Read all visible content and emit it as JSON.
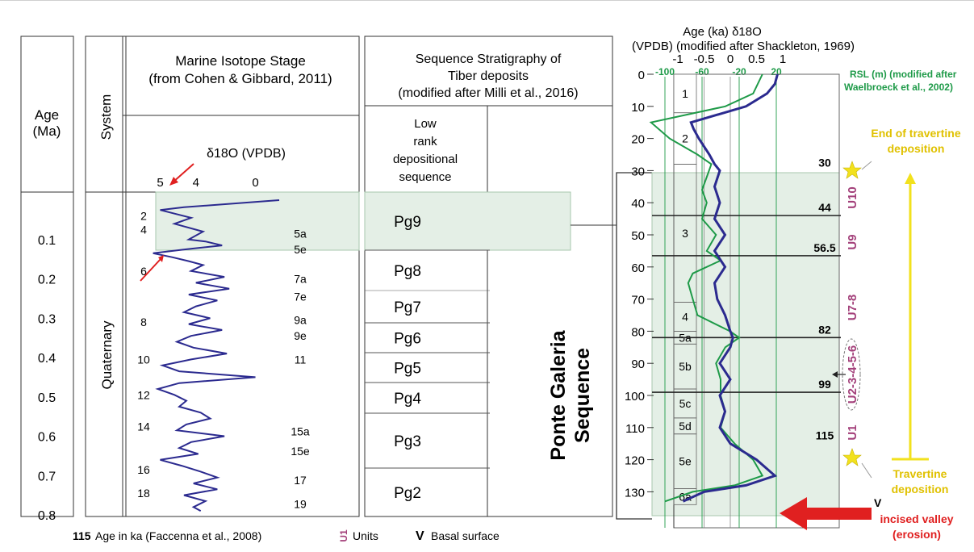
{
  "age_column": {
    "title_line1": "Age",
    "title_line2": "(Ma)",
    "ticks": [
      "0.1",
      "0.2",
      "0.3",
      "0.4",
      "0.5",
      "0.6",
      "0.7",
      "0.8"
    ]
  },
  "system_column": {
    "title": "System",
    "value": "Quaternary"
  },
  "mis_panel": {
    "title_line1": "Marine Isotope Stage",
    "title_line2": "(from Cohen & Gibbard, 2011)",
    "axis_title": "δ18O (VPDB)",
    "axis_ticks": [
      "5",
      "4",
      "0"
    ],
    "stage_labels_left": [
      "2",
      "4",
      "6",
      "8",
      "10",
      "12",
      "14",
      "16",
      "18"
    ],
    "stage_labels_right": [
      "5a",
      "5e",
      "7a",
      "7e",
      "9a",
      "9e",
      "11",
      "15a",
      "15e",
      "17",
      "19"
    ]
  },
  "sequence_panel": {
    "title_line1": "Sequence Stratigraphy of",
    "title_line2": "Tiber deposits",
    "title_line3": "(modified after Milli et al., 2016)",
    "col_header": [
      "Low",
      "rank",
      "depositional",
      "sequence"
    ],
    "sequences": [
      "Pg9",
      "Pg8",
      "Pg7",
      "Pg6",
      "Pg5",
      "Pg4",
      "Pg3",
      "Pg2"
    ],
    "big_label_line1": "Ponte Galeria",
    "big_label_line2": "Sequence"
  },
  "right_panel": {
    "title_line1": "Age (ka) δ18O",
    "title_line2": "(VPDB) (modified after Shackleton, 1969)",
    "d18o_ticks": [
      "-1",
      "-0.5",
      "0",
      "0.5",
      "1"
    ],
    "rsl_ticks": [
      "-100",
      "-60",
      "-20",
      "20"
    ],
    "rsl_label_line1": "RSL (m) (modified after",
    "rsl_label_line2": "Waelbroeck et al., 2002)",
    "age_ticks": [
      "0",
      "10",
      "20",
      "30",
      "40",
      "50",
      "60",
      "70",
      "80",
      "90",
      "100",
      "110",
      "120",
      "130"
    ],
    "mis_boxes": [
      "1",
      "2",
      "3",
      "4",
      "5a",
      "5b",
      "5c",
      "5d",
      "5e",
      "6a"
    ],
    "boundary_ages": [
      "30",
      "44",
      "56.5",
      "82",
      "99",
      "115"
    ],
    "units": [
      "U10",
      "U9",
      "U7-8",
      "U2-3-4-5-6",
      "U1"
    ],
    "end_travertine_line1": "End of travertine",
    "end_travertine_line2": "deposition",
    "travertine_line1": "Travertine",
    "travertine_line2": "deposition",
    "incised_line1": "incised valley",
    "incised_line2": "(erosion)",
    "v_mark": "V",
    "colors": {
      "d18o": "#2b2a8f",
      "rsl": "#1e9a48",
      "units": "#a3407a",
      "yellow": "#f2e11d",
      "red": "#e02020",
      "shade": "#e4efe6"
    }
  },
  "legend": {
    "num": "115",
    "age_text": "Age in ka (Faccenna et al., 2008)",
    "unit_glyph": "U1",
    "units_text": "Units",
    "v_glyph": "V",
    "basal_text": "Basal surface"
  },
  "chart_data": [
    {
      "type": "line",
      "title": "Marine Isotope Stage (from Cohen & Gibbard, 2011)",
      "xlabel": "δ18O (VPDB)",
      "ylabel": "Age (Ma)",
      "x_ticks": [
        "5",
        "4",
        "0"
      ],
      "y_ticks": [
        0.1,
        0.2,
        0.3,
        0.4,
        0.5,
        0.6,
        0.7,
        0.8
      ],
      "ylim": [
        0,
        0.8
      ],
      "series": [
        {
          "name": "",
          "y_age_ma": [
            0.0,
            0.018,
            0.025,
            0.045,
            0.06,
            0.08,
            0.1,
            0.105,
            0.115,
            0.125,
            0.135,
            0.145,
            0.155,
            0.165,
            0.18,
            0.195,
            0.21,
            0.225,
            0.24,
            0.255,
            0.27,
            0.285,
            0.3,
            0.315,
            0.33,
            0.345,
            0.36,
            0.375,
            0.39,
            0.405,
            0.42,
            0.435,
            0.45,
            0.465,
            0.48,
            0.495,
            0.51,
            0.525,
            0.54,
            0.555,
            0.57,
            0.585,
            0.6,
            0.615,
            0.63,
            0.645,
            0.66,
            0.675,
            0.69,
            0.705,
            0.72,
            0.735,
            0.75,
            0.765,
            0.78,
            0.79
          ],
          "x_pos": [
            0.0,
            4.0,
            5.0,
            3.7,
            4.4,
            3.2,
            3.8,
            3.1,
            2.4,
            3.9,
            5.3,
            4.5,
            3.8,
            3.2,
            3.7,
            2.3,
            3.5,
            2.1,
            3.8,
            2.6,
            3.5,
            4.0,
            2.9,
            3.8,
            2.4,
            3.7,
            4.3,
            3.6,
            2.2,
            3.7,
            4.9,
            4.2,
            1.0,
            4.2,
            5.1,
            4.4,
            3.9,
            4.2,
            3.3,
            2.9,
            3.9,
            4.3,
            2.3,
            3.7,
            4.2,
            3.4,
            5.0,
            4.1,
            3.3,
            2.6,
            3.6,
            2.6,
            4.0,
            3.1,
            3.6,
            3.3
          ]
        }
      ]
    },
    {
      "type": "line",
      "title": "Age (ka) δ18O (VPDB) (modified after Shackleton, 1969)",
      "ylabel": "Age (ka)",
      "xlim_d18o": [
        -1,
        1
      ],
      "xlim_rsl_m": [
        -120,
        20
      ],
      "ylim": [
        0,
        135
      ],
      "series": [
        {
          "name": "δ18O",
          "age_ka": [
            0,
            3,
            6,
            10,
            15,
            17,
            20,
            25,
            28,
            30,
            35,
            40,
            45,
            50,
            55,
            60,
            65,
            70,
            75,
            80,
            82,
            85,
            90,
            95,
            100,
            105,
            110,
            115,
            120,
            125,
            128,
            130,
            133
          ],
          "values": [
            0.9,
            0.85,
            0.7,
            0.3,
            -0.75,
            -0.7,
            -0.6,
            -0.4,
            -0.3,
            -0.2,
            -0.3,
            -0.2,
            -0.3,
            -0.1,
            -0.3,
            -0.1,
            -0.3,
            -0.25,
            -0.1,
            0,
            0.05,
            0,
            -0.2,
            0,
            -0.2,
            -0.1,
            -0.2,
            0,
            0.5,
            0.85,
            0.3,
            -0.5,
            -0.9
          ]
        },
        {
          "name": "RSL (m)",
          "age_ka": [
            0,
            6,
            10,
            15,
            20,
            25,
            28,
            32,
            36,
            40,
            45,
            50,
            55,
            58,
            62,
            65,
            70,
            75,
            80,
            82,
            85,
            90,
            95,
            100,
            105,
            110,
            115,
            120,
            125,
            128,
            130,
            133
          ],
          "values": [
            5,
            -5,
            -35,
            -115,
            -95,
            -65,
            -50,
            -55,
            -60,
            -55,
            -60,
            -45,
            -55,
            -40,
            -70,
            -75,
            -70,
            -65,
            -30,
            -20,
            -35,
            -45,
            -40,
            -40,
            -35,
            -40,
            -25,
            -5,
            5,
            -25,
            -70,
            -100
          ]
        }
      ]
    }
  ]
}
